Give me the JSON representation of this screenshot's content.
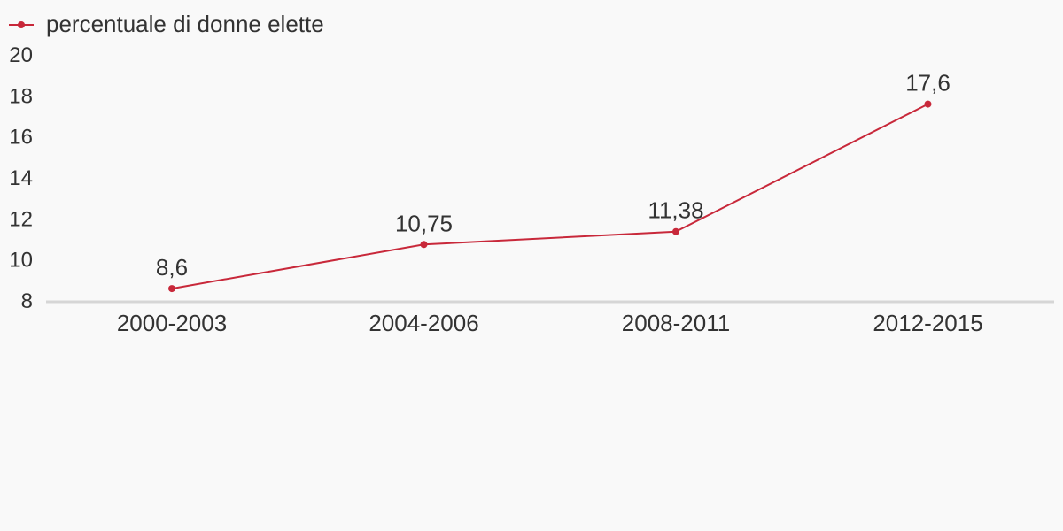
{
  "chart_data": {
    "type": "line",
    "categories": [
      "2000-2003",
      "2004-2006",
      "2008-2011",
      "2012-2015"
    ],
    "series": [
      {
        "name": "percentuale di donne elette",
        "values": [
          8.6,
          10.75,
          11.38,
          17.6
        ],
        "labels": [
          "8,6",
          "10,75",
          "11,38",
          "17,6"
        ],
        "color": "#c8283a"
      }
    ],
    "ylim": [
      8,
      20
    ],
    "yticks": [
      "8",
      "10",
      "12",
      "14",
      "16",
      "18",
      "20"
    ],
    "ytick_values": [
      8,
      10,
      12,
      14,
      16,
      18,
      20
    ],
    "grid": false,
    "legend_position": "top-left",
    "axis_color": "#d6d6d6",
    "text_color": "#333333",
    "background": "#f9f9f9"
  }
}
